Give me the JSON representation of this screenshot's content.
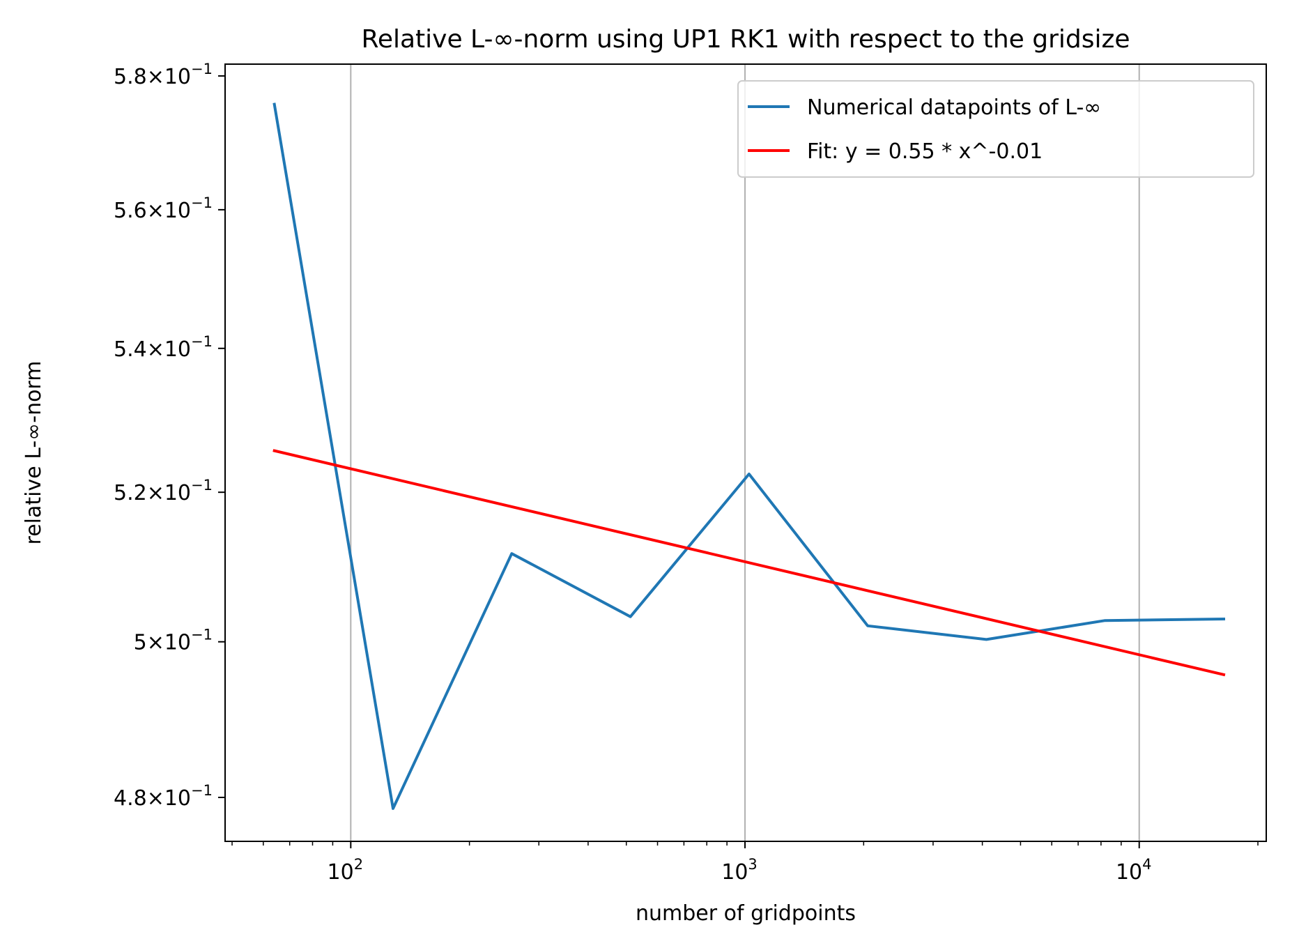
{
  "chart_data": {
    "type": "line",
    "title": "Relative L-∞-norm using UP1 RK1 with respect to the gridsize",
    "xlabel": "number of gridpoints",
    "ylabel": "relative L-∞-norm",
    "xscale": "log",
    "yscale": "log",
    "xlim": [
      48,
      21000
    ],
    "ylim": [
      0.4745,
      0.5818
    ],
    "grid": "vertical major gridlines",
    "legend_position": "top-right",
    "x_ticks": [
      {
        "base": "10",
        "exp": "2"
      },
      {
        "base": "10",
        "exp": "3"
      },
      {
        "base": "10",
        "exp": "4"
      }
    ],
    "y_ticks": [
      {
        "mant": "4.8",
        "times": "×",
        "base": "10",
        "exp": "−1"
      },
      {
        "mant": "5",
        "times": "×",
        "base": "10",
        "exp": "−1"
      },
      {
        "mant": "5.2",
        "times": "×",
        "base": "10",
        "exp": "−1"
      },
      {
        "mant": "5.4",
        "times": "×",
        "base": "10",
        "exp": "−1"
      },
      {
        "mant": "5.6",
        "times": "×",
        "base": "10",
        "exp": "−1"
      },
      {
        "mant": "5.8",
        "times": "×",
        "base": "10",
        "exp": "−1"
      }
    ],
    "series": [
      {
        "name": "Numerical datapoints of L-∞",
        "color": "#1f77b4",
        "x": [
          64,
          128,
          256,
          512,
          1024,
          2048,
          4096,
          8192,
          16384
        ],
        "y": [
          0.5757,
          0.4786,
          0.5117,
          0.5033,
          0.5225,
          0.5021,
          0.5003,
          0.5028,
          0.503
        ]
      },
      {
        "name": "Fit: y = 0.55 * x^-0.01",
        "color": "#ff0000",
        "x": [
          64,
          16384
        ],
        "y": [
          0.5257,
          0.4957
        ]
      }
    ]
  }
}
